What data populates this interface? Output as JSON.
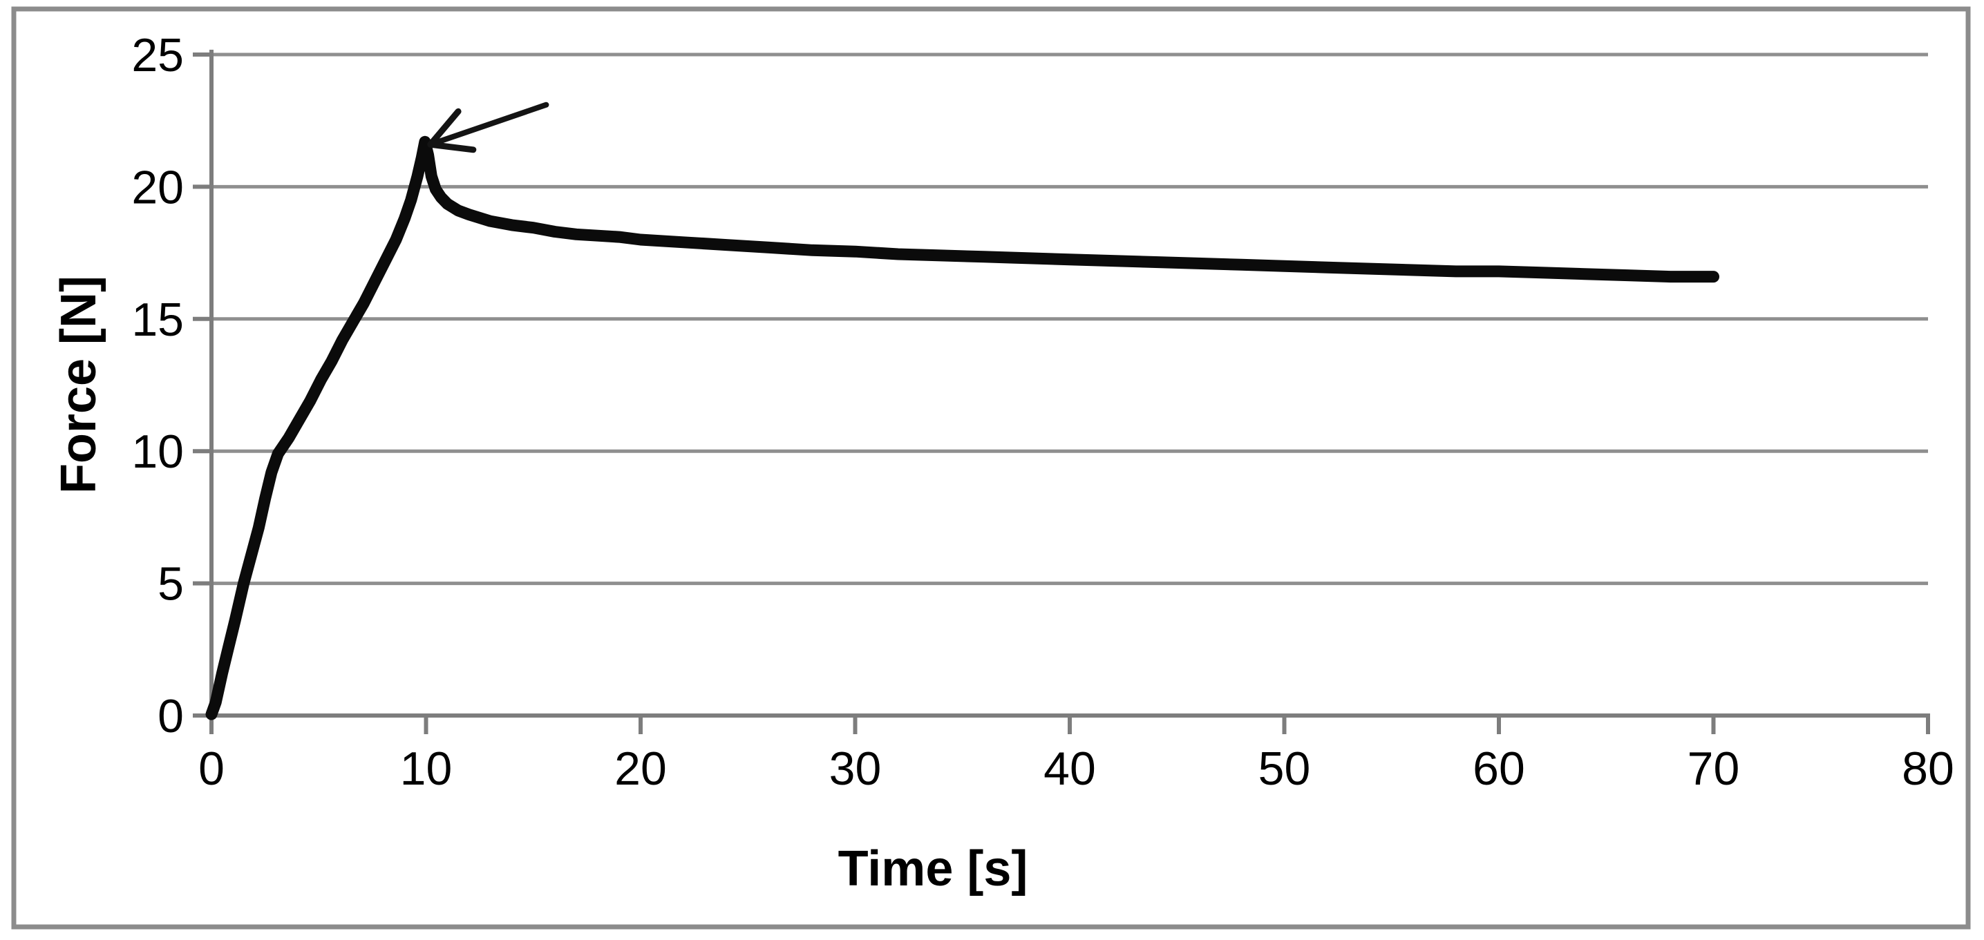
{
  "figure": {
    "background": "#ffffff",
    "border_color": "#8c8c8c",
    "grid_color": "#8f8f8f",
    "axis_color": "#7d7d7d",
    "tick_label_color": "#000000",
    "curve_color": "#0b0b0b",
    "arrow_color": "#141414"
  },
  "chart_data": {
    "type": "line",
    "title": "",
    "xlabel": "Time [s]",
    "ylabel": "Force [N]",
    "xlim": [
      0,
      80
    ],
    "ylim": [
      0,
      25
    ],
    "x_ticks": [
      0,
      10,
      20,
      30,
      40,
      50,
      60,
      70,
      80
    ],
    "y_ticks": [
      0,
      5,
      10,
      15,
      20,
      25
    ],
    "grid": "horizontal gridlines at every y tick",
    "legend_position": "none",
    "series": [
      {
        "name": "force-time curve",
        "color": "#0b0b0b",
        "points": [
          [
            0,
            0.05
          ],
          [
            0.2,
            0.5
          ],
          [
            0.5,
            1.6
          ],
          [
            0.8,
            2.6
          ],
          [
            1.1,
            3.6
          ],
          [
            1.5,
            5.0
          ],
          [
            1.9,
            6.2
          ],
          [
            2.2,
            7.1
          ],
          [
            2.5,
            8.2
          ],
          [
            2.8,
            9.2
          ],
          [
            3.1,
            9.9
          ],
          [
            3.6,
            10.5
          ],
          [
            4.1,
            11.2
          ],
          [
            4.6,
            11.9
          ],
          [
            5.1,
            12.7
          ],
          [
            5.6,
            13.4
          ],
          [
            6.1,
            14.2
          ],
          [
            6.6,
            14.9
          ],
          [
            7.1,
            15.6
          ],
          [
            7.6,
            16.4
          ],
          [
            8.1,
            17.2
          ],
          [
            8.6,
            18.0
          ],
          [
            9.0,
            18.8
          ],
          [
            9.3,
            19.5
          ],
          [
            9.6,
            20.4
          ],
          [
            9.8,
            21.1
          ],
          [
            9.95,
            21.7
          ],
          [
            10.1,
            21.2
          ],
          [
            10.25,
            20.4
          ],
          [
            10.45,
            19.9
          ],
          [
            10.7,
            19.6
          ],
          [
            11.0,
            19.35
          ],
          [
            11.5,
            19.1
          ],
          [
            12.0,
            18.95
          ],
          [
            13,
            18.7
          ],
          [
            14,
            18.55
          ],
          [
            15,
            18.45
          ],
          [
            16,
            18.3
          ],
          [
            17,
            18.2
          ],
          [
            18,
            18.15
          ],
          [
            19,
            18.1
          ],
          [
            20,
            18.0
          ],
          [
            22,
            17.9
          ],
          [
            24,
            17.8
          ],
          [
            26,
            17.7
          ],
          [
            28,
            17.6
          ],
          [
            30,
            17.55
          ],
          [
            32,
            17.45
          ],
          [
            34,
            17.4
          ],
          [
            36,
            17.35
          ],
          [
            38,
            17.3
          ],
          [
            40,
            17.25
          ],
          [
            42,
            17.2
          ],
          [
            44,
            17.15
          ],
          [
            46,
            17.1
          ],
          [
            48,
            17.05
          ],
          [
            50,
            17.0
          ],
          [
            52,
            16.95
          ],
          [
            54,
            16.9
          ],
          [
            56,
            16.85
          ],
          [
            58,
            16.8
          ],
          [
            60,
            16.8
          ],
          [
            62,
            16.75
          ],
          [
            64,
            16.7
          ],
          [
            66,
            16.65
          ],
          [
            68,
            16.6
          ],
          [
            70,
            16.6
          ]
        ]
      }
    ],
    "annotations": [
      {
        "type": "arrow",
        "name": "peak-force-arrow",
        "tail": [
          15.6,
          23.1
        ],
        "tip": [
          10.2,
          21.6
        ],
        "barb_upper": [
          11.5,
          22.85
        ],
        "barb_lower": [
          12.2,
          21.4
        ]
      }
    ],
    "peak_point": {
      "t": 9.95,
      "force": 21.7
    },
    "last_point": {
      "t": 70,
      "force": 16.6
    }
  }
}
